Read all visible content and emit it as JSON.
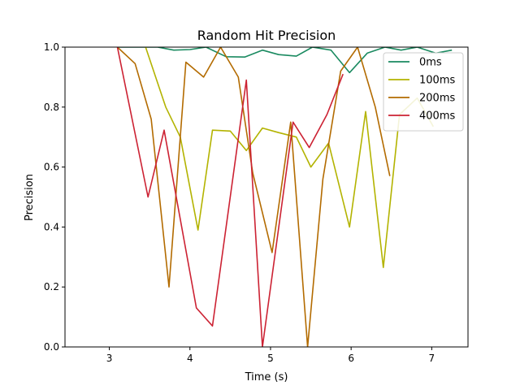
{
  "chart_data": {
    "type": "line",
    "title": "Random Hit Precision",
    "xlabel": "Time (s)",
    "ylabel": "Precision",
    "xlim": [
      2.45,
      7.45
    ],
    "ylim": [
      0.0,
      1.0
    ],
    "xticks": [
      3,
      4,
      5,
      6,
      7
    ],
    "yticks": [
      0.0,
      0.2,
      0.4,
      0.6,
      0.8,
      1.0
    ],
    "xtick_labels": [
      "3",
      "4",
      "5",
      "6",
      "7"
    ],
    "ytick_labels": [
      "0.0",
      "0.2",
      "0.4",
      "0.6",
      "0.8",
      "1.0"
    ],
    "grid": false,
    "legend_position": "top-right",
    "series": [
      {
        "name": "0ms",
        "color": "#1a8a60",
        "points": [
          [
            3.1,
            1.0
          ],
          [
            3.3,
            1.0
          ],
          [
            3.5,
            1.0
          ],
          [
            3.6,
            1.0
          ],
          [
            3.8,
            0.99
          ],
          [
            4.0,
            0.992
          ],
          [
            4.2,
            1.0
          ],
          [
            4.45,
            0.968
          ],
          [
            4.68,
            0.967
          ],
          [
            4.9,
            0.99
          ],
          [
            5.1,
            0.975
          ],
          [
            5.32,
            0.97
          ],
          [
            5.52,
            1.0
          ],
          [
            5.75,
            0.99
          ],
          [
            5.98,
            0.915
          ],
          [
            6.2,
            0.98
          ],
          [
            6.42,
            1.0
          ],
          [
            6.62,
            0.99
          ],
          [
            6.82,
            1.0
          ],
          [
            7.05,
            0.98
          ],
          [
            7.25,
            0.99
          ]
        ]
      },
      {
        "name": "100ms",
        "color": "#b3b300",
        "points": [
          [
            3.45,
            1.0
          ],
          [
            3.7,
            0.8
          ],
          [
            3.88,
            0.7
          ],
          [
            4.1,
            0.39
          ],
          [
            4.28,
            0.723
          ],
          [
            4.5,
            0.72
          ],
          [
            4.7,
            0.655
          ],
          [
            4.9,
            0.73
          ],
          [
            5.1,
            0.715
          ],
          [
            5.32,
            0.7
          ],
          [
            5.5,
            0.6
          ],
          [
            5.72,
            0.68
          ],
          [
            5.98,
            0.4
          ],
          [
            6.18,
            0.785
          ],
          [
            6.4,
            0.265
          ],
          [
            6.6,
            0.775
          ],
          [
            6.82,
            0.83
          ],
          [
            7.02,
            0.735
          ]
        ]
      },
      {
        "name": "200ms",
        "color": "#b36b00",
        "points": [
          [
            3.1,
            1.0
          ],
          [
            3.32,
            0.945
          ],
          [
            3.52,
            0.76
          ],
          [
            3.74,
            0.2
          ],
          [
            3.95,
            0.95
          ],
          [
            4.17,
            0.9
          ],
          [
            4.38,
            1.0
          ],
          [
            4.6,
            0.9
          ],
          [
            4.78,
            0.58
          ],
          [
            5.02,
            0.315
          ],
          [
            5.25,
            0.75
          ],
          [
            5.46,
            0.0
          ],
          [
            5.65,
            0.56
          ],
          [
            5.87,
            0.92
          ],
          [
            6.08,
            1.0
          ],
          [
            6.3,
            0.8
          ],
          [
            6.48,
            0.57
          ]
        ]
      },
      {
        "name": "400ms",
        "color": "#cc2233",
        "points": [
          [
            3.1,
            1.0
          ],
          [
            3.48,
            0.5
          ],
          [
            3.68,
            0.723
          ],
          [
            4.08,
            0.13
          ],
          [
            4.28,
            0.07
          ],
          [
            4.7,
            0.89
          ],
          [
            4.9,
            0.0
          ],
          [
            5.28,
            0.75
          ],
          [
            5.48,
            0.665
          ],
          [
            5.7,
            0.775
          ],
          [
            5.9,
            0.91
          ]
        ]
      }
    ]
  }
}
